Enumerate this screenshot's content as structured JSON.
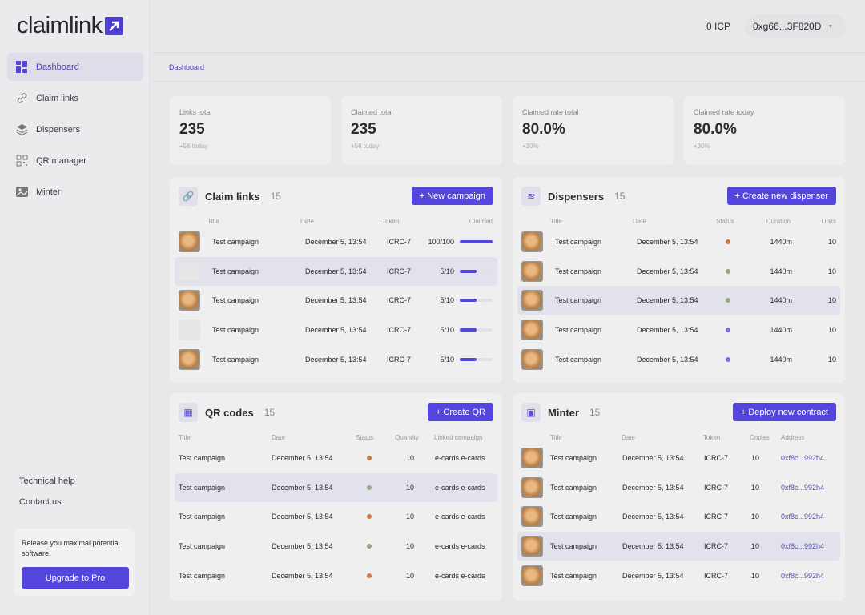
{
  "brand": {
    "name": "claimlink"
  },
  "sidebar": {
    "items": [
      {
        "label": "Dashboard",
        "icon": "dashboard-icon",
        "active": true
      },
      {
        "label": "Claim links",
        "icon": "link-icon"
      },
      {
        "label": "Dispensers",
        "icon": "layers-icon"
      },
      {
        "label": "QR manager",
        "icon": "qr-icon"
      },
      {
        "label": "Minter",
        "icon": "image-icon"
      }
    ],
    "technical_help": "Technical help",
    "contact_us": "Contact us",
    "promo": {
      "text": "Release you maximal potential software.",
      "button": "Upgrade to Pro"
    }
  },
  "header": {
    "balance": "0 ICP",
    "wallet": "0xg66...3F820D"
  },
  "breadcrumb": "Dashboard",
  "stats": [
    {
      "label": "Links total",
      "value": "235",
      "delta": "+56 today"
    },
    {
      "label": "Claimed total",
      "value": "235",
      "delta": "+56 today"
    },
    {
      "label": "Claimed rate total",
      "value": "80.0%",
      "delta": "+30%"
    },
    {
      "label": "Claimed rate today",
      "value": "80.0%",
      "delta": "+30%"
    }
  ],
  "status_colors": {
    "orange": "#c9784a",
    "green": "#98a48a",
    "purple": "#7b6ee0"
  },
  "accent": "#5446dc",
  "claim_links": {
    "title": "Claim links",
    "count": "15",
    "button": "New campaign",
    "columns": [
      "Title",
      "Date",
      "Token",
      "Claimed"
    ],
    "rows": [
      {
        "title": "Test campaign",
        "date": "December 5, 13:54",
        "token": "ICRC-7",
        "claimed": "100/100",
        "progress": 1.0,
        "thumb": true
      },
      {
        "title": "Test campaign",
        "date": "December 5, 13:54",
        "token": "ICRC-7",
        "claimed": "5/10",
        "progress": 0.5,
        "thumb": false,
        "highlight": true
      },
      {
        "title": "Test campaign",
        "date": "December 5, 13:54",
        "token": "ICRC-7",
        "claimed": "5/10",
        "progress": 0.5,
        "thumb": true
      },
      {
        "title": "Test campaign",
        "date": "December 5, 13:54",
        "token": "ICRC-7",
        "claimed": "5/10",
        "progress": 0.5,
        "thumb": false
      },
      {
        "title": "Test campaign",
        "date": "December 5, 13:54",
        "token": "ICRC-7",
        "claimed": "5/10",
        "progress": 0.5,
        "thumb": true
      }
    ]
  },
  "dispensers": {
    "title": "Dispensers",
    "count": "15",
    "button": "Create new dispenser",
    "columns": [
      "Title",
      "Date",
      "Status",
      "Duration",
      "Links"
    ],
    "rows": [
      {
        "title": "Test campaign",
        "date": "December 5, 13:54",
        "status": "orange",
        "duration": "1440m",
        "links": "10"
      },
      {
        "title": "Test campaign",
        "date": "December 5, 13:54",
        "status": "green",
        "duration": "1440m",
        "links": "10"
      },
      {
        "title": "Test campaign",
        "date": "December 5, 13:54",
        "status": "green",
        "duration": "1440m",
        "links": "10",
        "highlight": true
      },
      {
        "title": "Test campaign",
        "date": "December 5, 13:54",
        "status": "purple",
        "duration": "1440m",
        "links": "10"
      },
      {
        "title": "Test campaign",
        "date": "December 5, 13:54",
        "status": "purple",
        "duration": "1440m",
        "links": "10"
      }
    ]
  },
  "qr_codes": {
    "title": "QR codes",
    "count": "15",
    "button": "Create QR",
    "columns": [
      "Title",
      "Date",
      "Status",
      "Quantity",
      "Linked campaign"
    ],
    "rows": [
      {
        "title": "Test campaign",
        "date": "December 5, 13:54",
        "status": "orange",
        "quantity": "10",
        "linked": "e-cards e-cards"
      },
      {
        "title": "Test campaign",
        "date": "December 5, 13:54",
        "status": "green",
        "quantity": "10",
        "linked": "e-cards e-cards",
        "highlight": true
      },
      {
        "title": "Test campaign",
        "date": "December 5, 13:54",
        "status": "orange",
        "quantity": "10",
        "linked": "e-cards e-cards"
      },
      {
        "title": "Test campaign",
        "date": "December 5, 13:54",
        "status": "green",
        "quantity": "10",
        "linked": "e-cards e-cards"
      },
      {
        "title": "Test campaign",
        "date": "December 5, 13:54",
        "status": "orange",
        "quantity": "10",
        "linked": "e-cards e-cards"
      }
    ]
  },
  "minter": {
    "title": "Minter",
    "count": "15",
    "button": "Deploy new contract",
    "columns": [
      "Title",
      "Date",
      "Token",
      "Copies",
      "Address"
    ],
    "rows": [
      {
        "title": "Test campaign",
        "date": "December 5, 13:54",
        "token": "ICRC-7",
        "copies": "10",
        "address": "0xf8c...992h4"
      },
      {
        "title": "Test campaign",
        "date": "December 5, 13:54",
        "token": "ICRC-7",
        "copies": "10",
        "address": "0xf8c...992h4"
      },
      {
        "title": "Test campaign",
        "date": "December 5, 13:54",
        "token": "ICRC-7",
        "copies": "10",
        "address": "0xf8c...992h4"
      },
      {
        "title": "Test campaign",
        "date": "December 5, 13:54",
        "token": "ICRC-7",
        "copies": "10",
        "address": "0xf8c...992h4",
        "highlight": true
      },
      {
        "title": "Test campaign",
        "date": "December 5, 13:54",
        "token": "ICRC-7",
        "copies": "10",
        "address": "0xf8c...992h4"
      }
    ]
  }
}
